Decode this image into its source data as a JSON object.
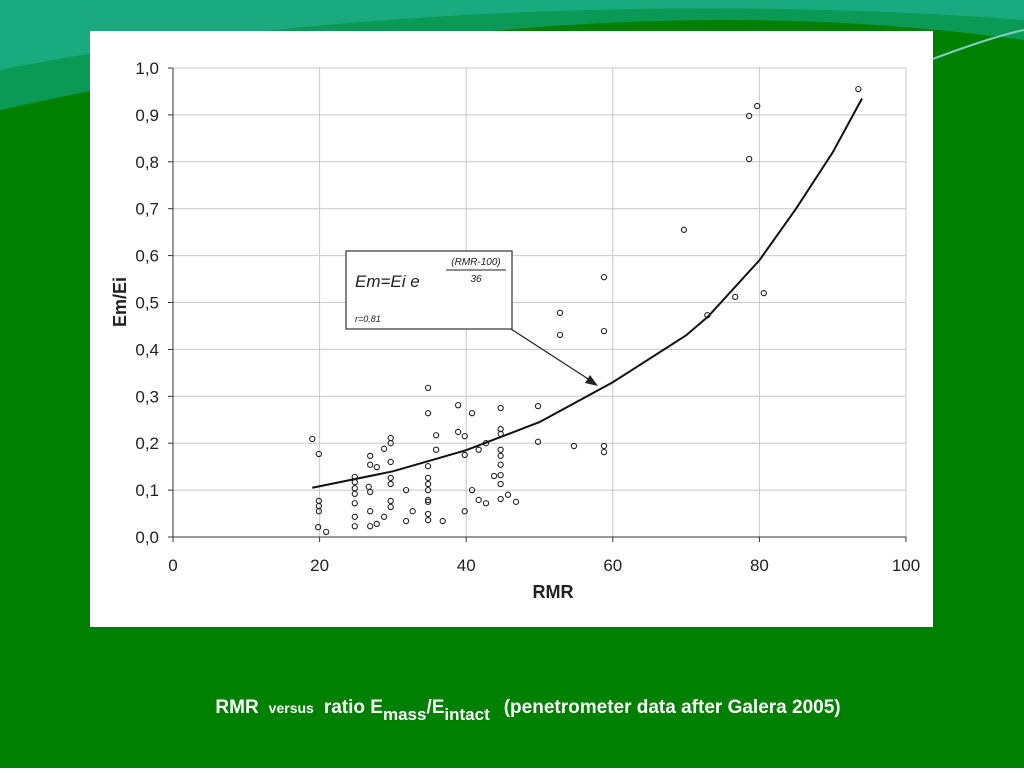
{
  "chart_data": {
    "type": "scatter",
    "ylabel": "Em/Ei",
    "xlabel": "RMR",
    "xlim": [
      0,
      100
    ],
    "xticks": [
      0,
      20,
      40,
      60,
      80,
      100
    ],
    "ylim": [
      0,
      1.0
    ],
    "yticks": [
      {
        "value": 0,
        "label": "0,0"
      },
      {
        "value": 0.1,
        "label": "0,1"
      },
      {
        "value": 0.2,
        "label": "0,2"
      },
      {
        "value": 0.3,
        "label": "0,3"
      },
      {
        "value": 0.4,
        "label": "0,4"
      },
      {
        "value": 0.5,
        "label": "0,5"
      },
      {
        "value": 0.6,
        "label": "0,6"
      },
      {
        "value": 0.7,
        "label": "0,7"
      },
      {
        "value": 0.8,
        "label": "0,8"
      },
      {
        "value": 0.9,
        "label": "0,9"
      },
      {
        "value": 1.0,
        "label": "1,0"
      }
    ],
    "grid": true,
    "series": [
      {
        "type": "scatter",
        "color": "#222222",
        "x": [
          19.0,
          19.9,
          19.9,
          19.9,
          19.9,
          19.8,
          20.9,
          24.8,
          24.8,
          24.8,
          24.8,
          24.8,
          24.8,
          24.8,
          26.7,
          26.9,
          26.9,
          26.9,
          26.9,
          26.9,
          27.8,
          27.8,
          28.8,
          28.8,
          29.7,
          29.7,
          29.7,
          29.7,
          29.7,
          29.7,
          29.7,
          31.8,
          31.8,
          32.7,
          34.8,
          34.8,
          34.8,
          34.8,
          34.8,
          34.8,
          34.8,
          34.8,
          34.8,
          34.8,
          35.9,
          35.9,
          36.8,
          38.9,
          38.9,
          39.8,
          39.8,
          39.8,
          40.8,
          40.8,
          41.7,
          41.7,
          42.7,
          42.7,
          43.8,
          44.7,
          44.7,
          44.7,
          44.7,
          44.7,
          44.7,
          44.7,
          44.7,
          44.7,
          45.7,
          46.8,
          49.8,
          49.8,
          52.8,
          52.8,
          54.7,
          58.8,
          58.8,
          58.8,
          58.8,
          69.7,
          72.9,
          76.7,
          78.6,
          78.6,
          79.7,
          80.6,
          93.5
        ],
        "values": [
          0.209,
          0.177,
          0.077,
          0.066,
          0.055,
          0.021,
          0.011,
          0.128,
          0.117,
          0.104,
          0.092,
          0.072,
          0.043,
          0.023,
          0.107,
          0.173,
          0.154,
          0.096,
          0.055,
          0.023,
          0.149,
          0.028,
          0.188,
          0.043,
          0.211,
          0.2,
          0.16,
          0.126,
          0.113,
          0.077,
          0.064,
          0.1,
          0.034,
          0.055,
          0.318,
          0.264,
          0.151,
          0.126,
          0.113,
          0.1,
          0.079,
          0.075,
          0.049,
          0.036,
          0.217,
          0.186,
          0.034,
          0.281,
          0.224,
          0.215,
          0.175,
          0.055,
          0.264,
          0.1,
          0.186,
          0.079,
          0.2,
          0.072,
          0.13,
          0.275,
          0.23,
          0.22,
          0.186,
          0.173,
          0.154,
          0.132,
          0.113,
          0.081,
          0.09,
          0.075,
          0.279,
          0.203,
          0.478,
          0.431,
          0.194,
          0.554,
          0.439,
          0.194,
          0.181,
          0.655,
          0.473,
          0.512,
          0.898,
          0.806,
          0.919,
          0.52,
          0.955
        ]
      },
      {
        "type": "line",
        "color": "#111111",
        "x": [
          19,
          30,
          40,
          50,
          60,
          70,
          73,
          80,
          85,
          90,
          94
        ],
        "values": [
          0.105,
          0.14,
          0.185,
          0.245,
          0.33,
          0.43,
          0.47,
          0.59,
          0.7,
          0.82,
          0.935
        ]
      }
    ],
    "annotation": {
      "formula": "Em=Ei e",
      "exponent_numerator": "(RMR-100)",
      "exponent_denominator": "36",
      "correlation": "r=0,81"
    }
  },
  "caption": {
    "part1": "RMR",
    "part2": "versus",
    "part3": "ratio E",
    "part4": "mass",
    "part5": "/E",
    "part6": "intact",
    "part7": "(penetrometer data after Galera 2005)"
  }
}
